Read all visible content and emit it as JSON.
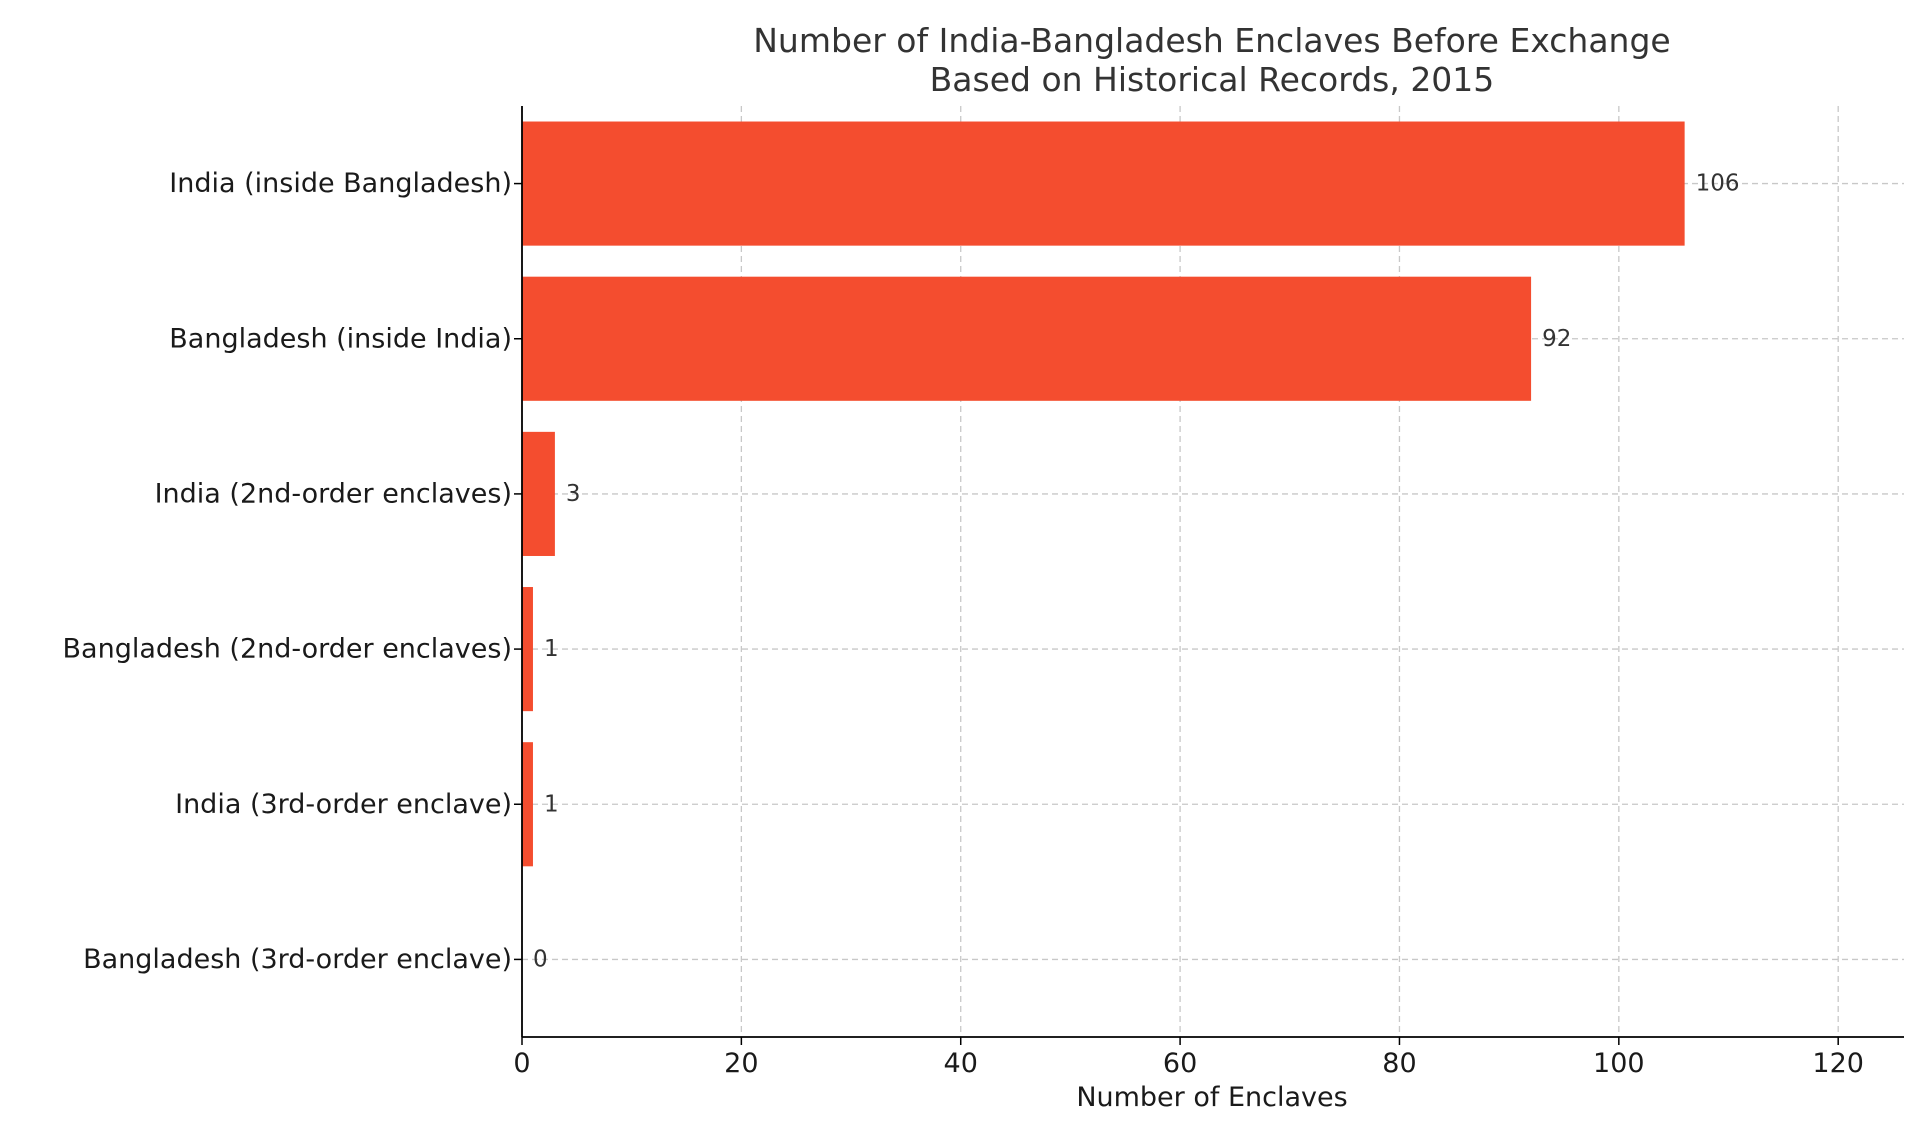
{
  "chart_data": {
    "type": "bar",
    "orientation": "horizontal",
    "title": "Number of India-Bangladesh Enclaves Before Exchange",
    "subtitle": "Based on Historical Records, 2015",
    "xlabel": "Number of Enclaves",
    "ylabel": "",
    "categories": [
      "India (inside Bangladesh)",
      "Bangladesh (inside India)",
      "India (2nd-order enclaves)",
      "Bangladesh (2nd-order enclaves)",
      "India (3rd-order enclave)",
      "Bangladesh (3rd-order enclave)"
    ],
    "values": [
      106,
      92,
      3,
      1,
      1,
      0
    ],
    "xlim": [
      0,
      126
    ],
    "xticks": [
      0,
      20,
      40,
      60,
      80,
      100,
      120
    ],
    "grid": true,
    "bar_color": "#f44d2f"
  }
}
